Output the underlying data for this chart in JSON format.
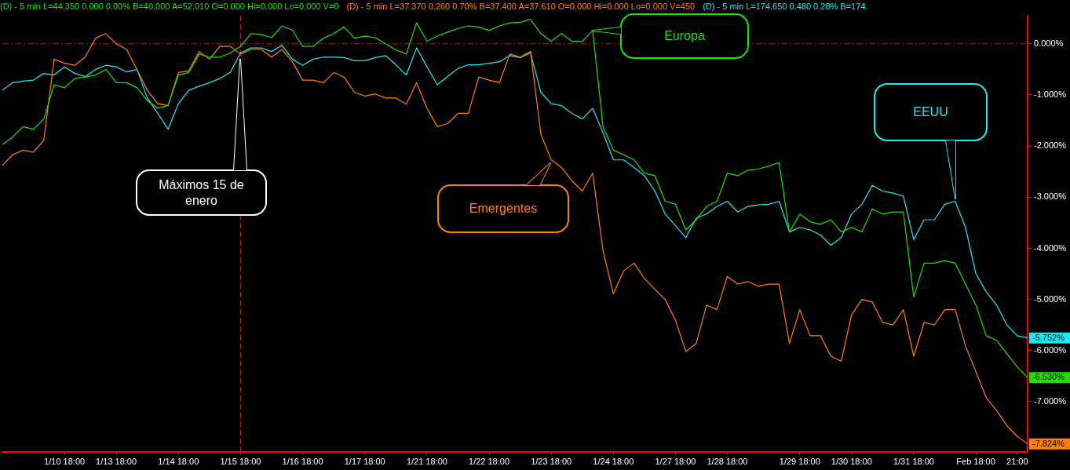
{
  "chart_data": {
    "type": "line",
    "categories": [
      null,
      null,
      null,
      null,
      null,
      null,
      "1/10 18:00",
      null,
      null,
      null,
      null,
      "1/13 18:00",
      null,
      null,
      null,
      null,
      null,
      "1/14 18:00",
      null,
      null,
      null,
      null,
      null,
      "1/15 18:00",
      null,
      null,
      null,
      null,
      null,
      "1/16 18:00",
      null,
      null,
      null,
      null,
      null,
      "1/17 18:00",
      null,
      null,
      null,
      null,
      null,
      "1/21 18:00",
      null,
      null,
      null,
      null,
      null,
      "1/22 18:00",
      null,
      null,
      null,
      null,
      null,
      "1/23 18:00",
      null,
      null,
      null,
      null,
      null,
      "1/24 18:00",
      null,
      null,
      null,
      null,
      null,
      "1/27 18:00",
      null,
      null,
      null,
      null,
      "1/28 18:00",
      null,
      null,
      null,
      null,
      null,
      null,
      "1/29 18:00",
      null,
      null,
      null,
      null,
      "1/30 18:00",
      null,
      null,
      null,
      null,
      null,
      "1/31 18:00",
      null,
      null,
      null,
      null,
      null,
      "Feb 18:00",
      null,
      null,
      null,
      "21:00",
      null
    ],
    "series": [
      {
        "name": "Europa",
        "color": "#1fe000",
        "values": [
          -1.97,
          -1.82,
          -1.62,
          -1.67,
          -1.47,
          -0.8,
          -0.86,
          -0.68,
          -0.65,
          -0.61,
          -0.5,
          -0.76,
          -0.76,
          -0.86,
          -1.11,
          -1.26,
          -1.21,
          -0.61,
          -0.56,
          -0.2,
          -0.26,
          -0.26,
          -0.18,
          -0.05,
          0.2,
          0.18,
          0.12,
          0.35,
          0.27,
          -0.05,
          -0.05,
          0.11,
          0.2,
          0.33,
          0.11,
          0.15,
          0.12,
          0,
          -0.12,
          -0.2,
          0.41,
          0.05,
          0.15,
          0.23,
          0.3,
          0.35,
          0.33,
          0.26,
          0.35,
          0.41,
          0.42,
          0.48,
          0.2,
          0.05,
          0.2,
          0.05,
          0.05,
          0.26,
          -1.62,
          -2.08,
          -2.17,
          -2.27,
          -2.53,
          -2.58,
          -3.08,
          -3.14,
          -3.64,
          -3.44,
          -3.18,
          -3.08,
          -2.53,
          -2.58,
          -2.47,
          -2.45,
          -2.39,
          -2.32,
          -3.68,
          -3.33,
          -3.48,
          -3.53,
          -3.44,
          -3.68,
          -3.59,
          -3.68,
          -3.23,
          -3.33,
          -3.29,
          -3.29,
          -4.95,
          -4.29,
          -4.29,
          -4.24,
          -4.29,
          -4.7,
          -5.11,
          -5.71,
          -5.8,
          -6.06,
          -6.32,
          -6.53
        ],
        "value_labels": [
          null,
          null,
          null,
          null,
          null,
          null,
          null,
          null,
          null,
          null,
          null,
          null,
          null,
          null,
          null,
          null,
          null,
          null,
          null,
          null,
          null,
          null,
          null,
          null,
          null,
          null,
          null,
          null,
          null,
          null,
          null,
          null,
          null,
          null,
          null,
          null,
          null,
          null,
          null,
          null,
          null,
          null,
          null,
          null,
          null,
          null,
          null,
          null,
          null,
          null,
          null,
          null,
          null,
          null,
          null,
          null,
          null,
          null,
          null,
          null,
          null,
          null,
          null,
          null,
          null,
          null,
          null,
          null,
          null,
          null,
          null,
          null,
          null,
          null,
          null,
          null,
          null,
          null,
          null,
          null,
          null,
          null,
          null,
          null,
          null,
          null,
          null,
          null,
          null,
          null,
          null,
          null,
          null,
          null,
          null,
          null,
          null,
          null,
          null,
          "-6.530%"
        ]
      },
      {
        "name": "Emergentes",
        "color": "#ff8000",
        "values": [
          -2.38,
          -2.17,
          -2.08,
          -2.12,
          -1.89,
          -0.3,
          -0.38,
          -0.42,
          -0.26,
          0.11,
          0.2,
          0,
          -0.11,
          -0.5,
          -0.91,
          -1.17,
          -1.21,
          -0.56,
          -0.53,
          -0.15,
          -0.3,
          -0.05,
          -0.05,
          -0.2,
          -0.11,
          -0.11,
          -0.26,
          -0.11,
          -0.35,
          -0.71,
          -0.71,
          -0.76,
          -0.56,
          -0.65,
          -0.95,
          -1.02,
          -0.98,
          -1.06,
          -1.06,
          -1.18,
          -0.76,
          -1.26,
          -1.62,
          -1.56,
          -1.36,
          -1.36,
          -0.65,
          -0.71,
          -0.76,
          -0.2,
          -0.26,
          -0.15,
          -1.77,
          -2.27,
          -2.42,
          -2.68,
          -2.88,
          -2.53,
          -4.05,
          -4.89,
          -4.44,
          -4.29,
          -4.59,
          -4.8,
          -5,
          -5.41,
          -6.02,
          -5.86,
          -5.11,
          -5.2,
          -4.55,
          -4.7,
          -4.65,
          -4.74,
          -4.7,
          -4.7,
          -5.86,
          -5.2,
          -5.71,
          -5.71,
          -6.11,
          -6.21,
          -5.3,
          -5,
          -5.05,
          -5.45,
          -5.5,
          -5.2,
          -6.11,
          -5.45,
          -5.5,
          -5.2,
          -5.2,
          -5.91,
          -6.41,
          -6.92,
          -7.17,
          -7.47,
          -7.68,
          -7.824
        ],
        "value_labels": [
          null,
          null,
          null,
          null,
          null,
          null,
          null,
          null,
          null,
          null,
          null,
          null,
          null,
          null,
          null,
          null,
          null,
          null,
          null,
          null,
          null,
          null,
          null,
          null,
          null,
          null,
          null,
          null,
          null,
          null,
          null,
          null,
          null,
          null,
          null,
          null,
          null,
          null,
          null,
          null,
          null,
          null,
          null,
          null,
          null,
          null,
          null,
          null,
          null,
          null,
          null,
          null,
          null,
          null,
          null,
          null,
          null,
          null,
          null,
          null,
          null,
          null,
          null,
          null,
          null,
          null,
          null,
          null,
          null,
          null,
          null,
          null,
          null,
          null,
          null,
          null,
          null,
          null,
          null,
          null,
          null,
          null,
          null,
          null,
          null,
          null,
          null,
          null,
          null,
          null,
          null,
          null,
          null,
          null,
          null,
          null,
          null,
          null,
          null,
          "-7.824%"
        ]
      },
      {
        "name": "EEUU",
        "color": "#1ee8f0",
        "values": [
          -0.91,
          -0.76,
          -0.73,
          -0.71,
          -0.58,
          -0.61,
          -0.45,
          -0.58,
          -0.64,
          -0.5,
          -0.42,
          -0.45,
          -0.55,
          -0.5,
          -1.06,
          -1.36,
          -1.67,
          -1.17,
          -0.91,
          -0.83,
          -0.76,
          -0.68,
          -0.56,
          -0.18,
          -0.08,
          -0.08,
          -0.15,
          -0.03,
          -0.3,
          -0.42,
          -0.3,
          -0.26,
          -0.26,
          -0.27,
          -0.33,
          -0.33,
          -0.27,
          -0.23,
          -0.41,
          -0.61,
          -0.08,
          -0.45,
          -0.8,
          -0.64,
          -0.48,
          -0.41,
          -0.41,
          -0.38,
          -0.35,
          -0.23,
          -0.27,
          -0.18,
          -0.95,
          -1.17,
          -1.21,
          -1.36,
          -1.47,
          -1.26,
          -1.74,
          -2.27,
          -2.27,
          -2.42,
          -2.58,
          -2.88,
          -3.33,
          -3.56,
          -3.79,
          -3.41,
          -3.33,
          -3.18,
          -3.08,
          -3.29,
          -3.18,
          -3.15,
          -3.14,
          -3.08,
          -3.68,
          -3.59,
          -3.64,
          -3.74,
          -3.94,
          -3.79,
          -3.33,
          -3.14,
          -2.77,
          -2.88,
          -2.92,
          -2.98,
          -3.83,
          -3.44,
          -3.44,
          -3.14,
          -3.08,
          -3.59,
          -4.5,
          -4.85,
          -5.11,
          -5.5,
          -5.71,
          -5.752
        ],
        "value_labels": [
          null,
          null,
          null,
          null,
          null,
          null,
          null,
          null,
          null,
          null,
          null,
          null,
          null,
          null,
          null,
          null,
          null,
          null,
          null,
          null,
          null,
          null,
          null,
          null,
          null,
          null,
          null,
          null,
          null,
          null,
          null,
          null,
          null,
          null,
          null,
          null,
          null,
          null,
          null,
          null,
          null,
          null,
          null,
          null,
          null,
          null,
          null,
          null,
          null,
          null,
          null,
          null,
          null,
          null,
          null,
          null,
          null,
          null,
          null,
          null,
          null,
          null,
          null,
          null,
          null,
          null,
          null,
          null,
          null,
          null,
          null,
          null,
          null,
          null,
          null,
          null,
          null,
          null,
          null,
          null,
          null,
          null,
          null,
          null,
          null,
          null,
          null,
          null,
          null,
          null,
          null,
          null,
          null,
          null,
          null,
          null,
          null,
          null,
          null,
          "-5.752%"
        ]
      }
    ],
    "ylim": [
      -7.98,
      0.55
    ],
    "yticks": [
      {
        "value": 0,
        "label": "0.000%"
      },
      {
        "value": -1,
        "label": "-1.000%"
      },
      {
        "value": -2,
        "label": "-2.000%"
      },
      {
        "value": -3,
        "label": "-3.000%"
      },
      {
        "value": -4,
        "label": "-4.000%"
      },
      {
        "value": -5,
        "label": "-5.000%"
      },
      {
        "value": -6,
        "label": "-6.000%"
      },
      {
        "value": -7,
        "label": "-7.000%"
      }
    ],
    "ref_lines": [
      {
        "axis": "y",
        "value": 0,
        "color": "#ff0000",
        "line_style": "dashed"
      },
      {
        "axis": "x",
        "value": "1/15 18:00",
        "color": "#b03030",
        "line_style": "dashed"
      }
    ],
    "annotations": [
      "(D) - 5 min L=44.350 0.000 0.00% B=40.000 A=52.010 O=0.000 Hi=0.000 Lo=0.000 V=0",
      "(D) - 5 min L=37.370 0.260 0.70% B=37.400 A=37.610 O=0.000 Hi=0.000 Lo=0.000 V=450",
      "(D) - 5 min L=174.650 0.480 0.28% B=174.",
      "Máximos 15 de enero"
    ],
    "grid": false,
    "legend": false,
    "marker": "none",
    "line_style": "solid"
  }
}
